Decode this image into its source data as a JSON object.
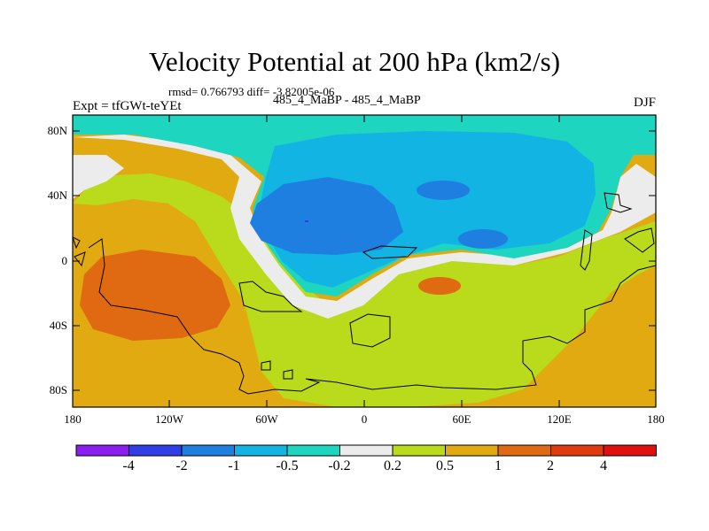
{
  "title": "Velocity Potential at 200 hPa (km2/s)",
  "stats": "rmsd= 0.766793 diff= -3.82005e-06",
  "left_string": "Expt = tfGWt-teYEt",
  "center_string": "485_4_MaBP - 485_4_MaBP",
  "right_string": "DJF",
  "lat_ticks": [
    "80N",
    "40N",
    "0",
    "40S",
    "80S"
  ],
  "lon_ticks": [
    "180",
    "120W",
    "60W",
    "0",
    "60E",
    "120E",
    "180"
  ],
  "colorbar": {
    "labels": [
      "-4",
      "-2",
      "-1",
      "-0.5",
      "-0.2",
      "0.2",
      "0.5",
      "1",
      "2",
      "4"
    ],
    "colors": [
      "#8b1ff0",
      "#2f3ee6",
      "#1f7fe0",
      "#12b4e4",
      "#1ed6c0",
      "#ececec",
      "#bada1c",
      "#e0aa10",
      "#e06a12",
      "#e03a10",
      "#e01010"
    ]
  },
  "chart_data": {
    "type": "filled_contour_map",
    "title": "Velocity Potential at 200 hPa (km2/s)",
    "variable": "velocity potential",
    "level_hpa": 200,
    "units": "km2/s",
    "season": "DJF",
    "x_range": [
      -180,
      180
    ],
    "y_range": [
      -90,
      90
    ],
    "contour_levels": [
      -4,
      -2,
      -1,
      -0.5,
      -0.2,
      0.2,
      0.5,
      1,
      2,
      4
    ],
    "rmsd": 0.766793,
    "diff": -3.82005e-06
  }
}
